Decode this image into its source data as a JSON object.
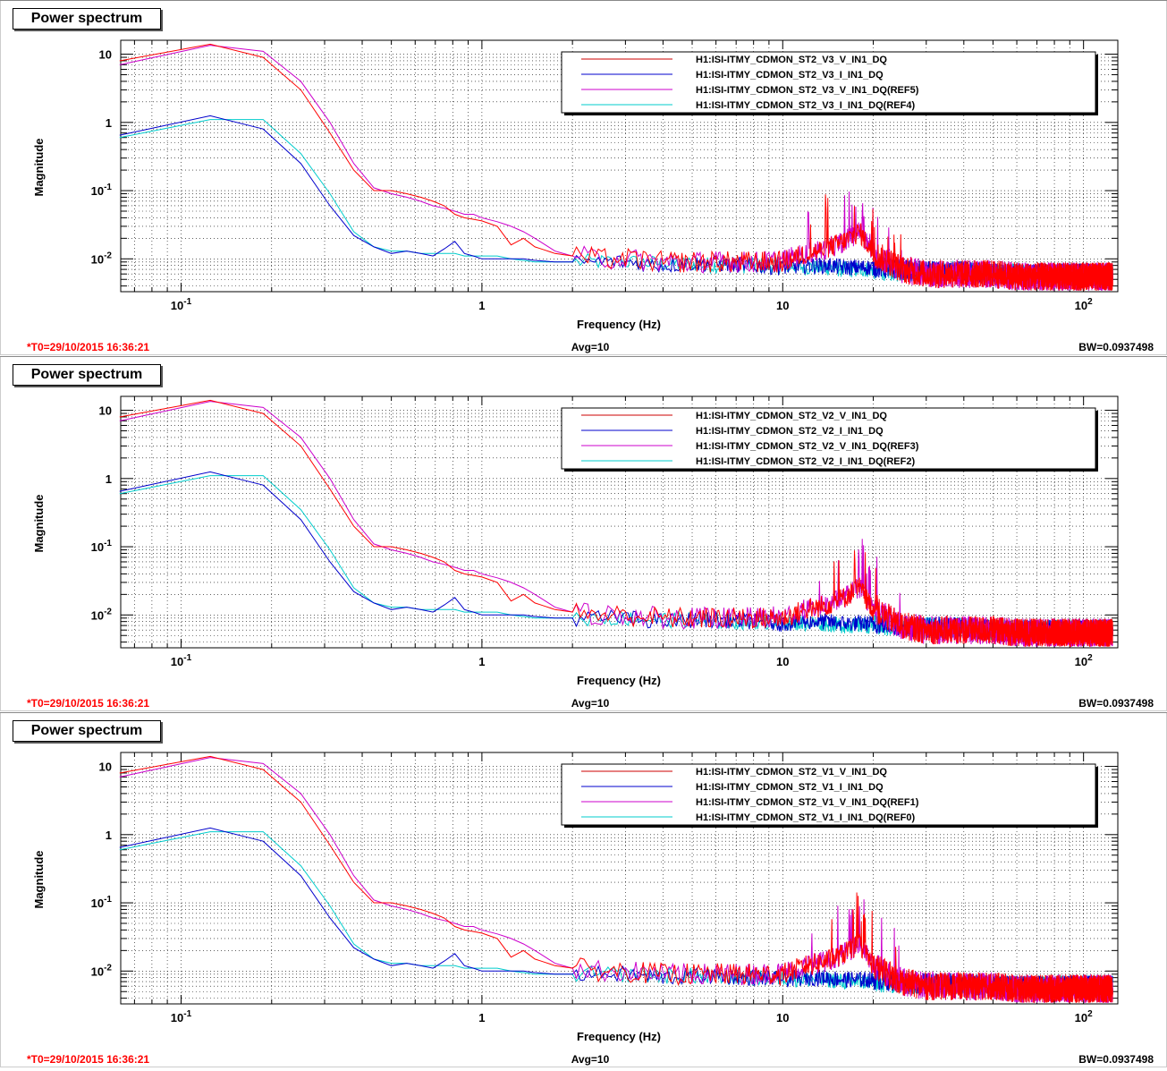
{
  "panels": [
    {
      "title": "Power spectrum",
      "ylabel": "Magnitude",
      "xlabel": "Frequency (Hz)",
      "t0": "*T0=29/10/2015 16:36:21",
      "avg": "Avg=10",
      "bw": "BW=0.0937498",
      "legend": [
        "H1:ISI-ITMY_CDMON_ST2_V3_V_IN1_DQ",
        "H1:ISI-ITMY_CDMON_ST2_V3_I_IN1_DQ",
        "H1:ISI-ITMY_CDMON_ST2_V3_V_IN1_DQ(REF5)",
        "H1:ISI-ITMY_CDMON_ST2_V3_I_IN1_DQ(REF4)"
      ]
    },
    {
      "title": "Power spectrum",
      "ylabel": "Magnitude",
      "xlabel": "Frequency (Hz)",
      "t0": "*T0=29/10/2015 16:36:21",
      "avg": "Avg=10",
      "bw": "BW=0.0937498",
      "legend": [
        "H1:ISI-ITMY_CDMON_ST2_V2_V_IN1_DQ",
        "H1:ISI-ITMY_CDMON_ST2_V2_I_IN1_DQ",
        "H1:ISI-ITMY_CDMON_ST2_V2_V_IN1_DQ(REF3)",
        "H1:ISI-ITMY_CDMON_ST2_V2_I_IN1_DQ(REF2)"
      ]
    },
    {
      "title": "Power spectrum",
      "ylabel": "Magnitude",
      "xlabel": "Frequency (Hz)",
      "t0": "*T0=29/10/2015 16:36:21",
      "avg": "Avg=10",
      "bw": "BW=0.0937498",
      "legend": [
        "H1:ISI-ITMY_CDMON_ST2_V1_V_IN1_DQ",
        "H1:ISI-ITMY_CDMON_ST2_V1_I_IN1_DQ",
        "H1:ISI-ITMY_CDMON_ST2_V1_V_IN1_DQ(REF1)",
        "H1:ISI-ITMY_CDMON_ST2_V1_I_IN1_DQ(REF0)"
      ]
    }
  ],
  "colors": {
    "series": [
      "#cc0000",
      "#0000cc",
      "#cc00cc",
      "#00cccc"
    ],
    "bright_red": "#ff0000",
    "footer_red": "#ff0000"
  },
  "chart_data": {
    "type": "line",
    "xscale": "log",
    "yscale": "log",
    "xlim": [
      0.063,
      130
    ],
    "ylim": [
      0.0033,
      16
    ],
    "grid": true,
    "legend_position": "top-right",
    "x_ticks": [
      "10^-1",
      "1",
      "10",
      "10^2"
    ],
    "y_ticks": [
      "10^-2",
      "10^-1",
      "1",
      "10"
    ],
    "x": [
      0.0625,
      0.125,
      0.1875,
      0.25,
      0.3125,
      0.375,
      0.4375,
      0.5,
      0.5625,
      0.625,
      0.6875,
      0.75,
      0.8125,
      0.875,
      0.9375,
      1.0,
      1.125,
      1.25,
      1.375,
      1.5,
      1.75,
      2.0,
      2.5,
      3.0,
      4.0,
      5.0,
      6.0,
      8.0,
      10.0,
      12.0,
      14.0,
      16.0,
      18.0,
      20.0,
      25.0,
      30.0,
      40.0,
      50.0,
      60.0,
      80.0,
      100.0,
      125.0
    ],
    "series": [
      {
        "name": "V_IN1_DQ",
        "values": [
          8.0,
          14.0,
          9.0,
          3.0,
          0.7,
          0.2,
          0.1,
          0.1,
          0.09,
          0.08,
          0.07,
          0.06,
          0.045,
          0.04,
          0.038,
          0.036,
          0.03,
          0.016,
          0.02,
          0.015,
          0.012,
          0.011,
          0.01,
          0.01,
          0.009,
          0.009,
          0.009,
          0.009,
          0.009,
          0.012,
          0.014,
          0.018,
          0.025,
          0.012,
          0.007,
          0.006,
          0.006,
          0.006,
          0.0055,
          0.0055,
          0.0055,
          0.0055
        ]
      },
      {
        "name": "I_IN1_DQ",
        "values": [
          0.65,
          1.25,
          0.8,
          0.25,
          0.06,
          0.022,
          0.015,
          0.012,
          0.013,
          0.012,
          0.011,
          0.014,
          0.018,
          0.012,
          0.011,
          0.01,
          0.01,
          0.01,
          0.01,
          0.0095,
          0.009,
          0.009,
          0.009,
          0.009,
          0.008,
          0.0085,
          0.0085,
          0.008,
          0.0075,
          0.008,
          0.008,
          0.0075,
          0.0075,
          0.0075,
          0.007,
          0.0065,
          0.0065,
          0.006,
          0.006,
          0.006,
          0.006,
          0.006
        ]
      },
      {
        "name": "V_IN1_DQ(REF)",
        "values": [
          7.0,
          13.5,
          11.0,
          4.0,
          1.0,
          0.25,
          0.11,
          0.09,
          0.08,
          0.07,
          0.06,
          0.055,
          0.05,
          0.045,
          0.045,
          0.04,
          0.035,
          0.03,
          0.025,
          0.02,
          0.013,
          0.011,
          0.01,
          0.01,
          0.009,
          0.009,
          0.009,
          0.009,
          0.0095,
          0.012,
          0.014,
          0.018,
          0.025,
          0.012,
          0.007,
          0.006,
          0.006,
          0.006,
          0.0055,
          0.0055,
          0.0055,
          0.0055
        ]
      },
      {
        "name": "I_IN1_DQ(REF)",
        "values": [
          0.6,
          1.1,
          1.1,
          0.35,
          0.09,
          0.025,
          0.015,
          0.013,
          0.013,
          0.012,
          0.012,
          0.012,
          0.012,
          0.011,
          0.011,
          0.011,
          0.011,
          0.01,
          0.0095,
          0.009,
          0.009,
          0.009,
          0.009,
          0.009,
          0.0085,
          0.0085,
          0.008,
          0.008,
          0.008,
          0.0075,
          0.0075,
          0.007,
          0.007,
          0.007,
          0.0065,
          0.0065,
          0.0065,
          0.006,
          0.006,
          0.006,
          0.006,
          0.006
        ]
      }
    ]
  }
}
